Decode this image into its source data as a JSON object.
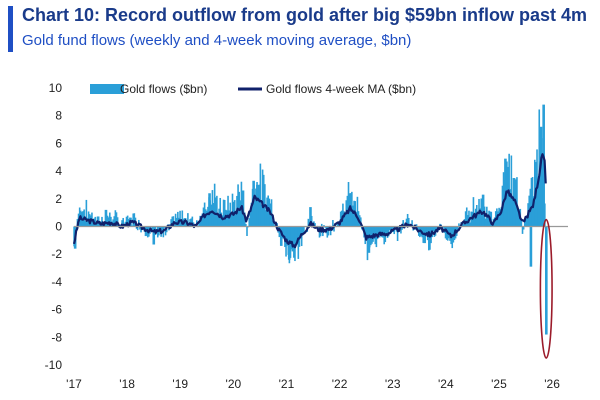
{
  "chart_data": {
    "type": "bar+line",
    "title": "Chart 10: Record outflow from gold after big $59bn inflow past 4m",
    "subtitle": "Gold fund flows (weekly and 4-week moving average, $bn)",
    "xlabel": "",
    "ylabel": "",
    "ylim": [
      -10,
      10
    ],
    "yticks": [
      10,
      8,
      6,
      4,
      2,
      0,
      -2,
      -4,
      -6,
      -8,
      -10
    ],
    "xlim": [
      2017,
      2026.3
    ],
    "xticks": [
      {
        "value": 2017,
        "label": "'17"
      },
      {
        "value": 2018,
        "label": "'18"
      },
      {
        "value": 2019,
        "label": "'19"
      },
      {
        "value": 2020,
        "label": "'20"
      },
      {
        "value": 2021,
        "label": "'21"
      },
      {
        "value": 2022,
        "label": "'22"
      },
      {
        "value": 2023,
        "label": "'23"
      },
      {
        "value": 2024,
        "label": "'24"
      },
      {
        "value": 2025,
        "label": "'25"
      },
      {
        "value": 2026,
        "label": "'26"
      }
    ],
    "series": [
      {
        "name": "Gold flows ($bn)",
        "kind": "bar",
        "color": "#2a9fd8",
        "anchors": [
          [
            2017.0,
            -1.5
          ],
          [
            2017.1,
            1.4
          ],
          [
            2017.3,
            0.9
          ],
          [
            2017.5,
            0.4
          ],
          [
            2017.7,
            0.8
          ],
          [
            2017.9,
            0.2
          ],
          [
            2018.1,
            0.7
          ],
          [
            2018.3,
            -0.2
          ],
          [
            2018.5,
            -0.6
          ],
          [
            2018.7,
            -0.7
          ],
          [
            2018.9,
            0.6
          ],
          [
            2019.1,
            0.8
          ],
          [
            2019.3,
            0.2
          ],
          [
            2019.45,
            1.5
          ],
          [
            2019.6,
            2.2
          ],
          [
            2019.8,
            1.3
          ],
          [
            2020.0,
            1.7
          ],
          [
            2020.15,
            2.5
          ],
          [
            2020.25,
            -0.4
          ],
          [
            2020.4,
            3.4
          ],
          [
            2020.55,
            2.8
          ],
          [
            2020.7,
            1.8
          ],
          [
            2020.85,
            -0.6
          ],
          [
            2021.0,
            -1.8
          ],
          [
            2021.15,
            -2.2
          ],
          [
            2021.3,
            -0.9
          ],
          [
            2021.45,
            0.6
          ],
          [
            2021.6,
            -0.5
          ],
          [
            2021.8,
            -0.3
          ],
          [
            2022.0,
            0.6
          ],
          [
            2022.2,
            2.3
          ],
          [
            2022.35,
            1.2
          ],
          [
            2022.5,
            -1.5
          ],
          [
            2022.7,
            -1.0
          ],
          [
            2022.9,
            -0.8
          ],
          [
            2023.1,
            -0.4
          ],
          [
            2023.3,
            0.6
          ],
          [
            2023.5,
            -0.5
          ],
          [
            2023.7,
            -1.0
          ],
          [
            2023.9,
            -0.2
          ],
          [
            2024.1,
            -1.2
          ],
          [
            2024.3,
            0.4
          ],
          [
            2024.5,
            1.3
          ],
          [
            2024.7,
            1.8
          ],
          [
            2024.9,
            0.3
          ],
          [
            2025.05,
            2.2
          ],
          [
            2025.15,
            4.7
          ],
          [
            2025.3,
            3.2
          ],
          [
            2025.45,
            -0.5
          ],
          [
            2025.55,
            1.8
          ],
          [
            2025.65,
            2.8
          ],
          [
            2025.75,
            6.5
          ],
          [
            2025.82,
            8.5
          ],
          [
            2025.86,
            4.0
          ],
          [
            2025.89,
            -7.7
          ],
          [
            2025.92,
            -2.0
          ]
        ],
        "spikes": [
          [
            2017.02,
            -1.6
          ],
          [
            2017.6,
            1.2
          ],
          [
            2018.5,
            -1.3
          ],
          [
            2019.55,
            2.4
          ],
          [
            2020.18,
            2.6
          ],
          [
            2020.38,
            3.3
          ],
          [
            2020.45,
            3.0
          ],
          [
            2020.9,
            -1.4
          ],
          [
            2021.05,
            -2.4
          ],
          [
            2021.12,
            -1.8
          ],
          [
            2021.45,
            1.4
          ],
          [
            2022.18,
            2.4
          ],
          [
            2022.55,
            -1.9
          ],
          [
            2023.6,
            -1.2
          ],
          [
            2024.7,
            2.3
          ],
          [
            2025.12,
            4.9
          ],
          [
            2025.28,
            3.5
          ],
          [
            2025.6,
            -2.9
          ],
          [
            2025.7,
            3.6
          ],
          [
            2025.79,
            7.2
          ],
          [
            2025.84,
            8.8
          ],
          [
            2025.89,
            -7.8
          ]
        ]
      },
      {
        "name": "Gold flows 4-week MA ($bn)",
        "kind": "line",
        "color": "#10216b",
        "anchors": [
          [
            2017.0,
            -1.2
          ],
          [
            2017.1,
            0.6
          ],
          [
            2017.3,
            0.4
          ],
          [
            2017.5,
            0.2
          ],
          [
            2017.7,
            0.3
          ],
          [
            2017.9,
            0.0
          ],
          [
            2018.1,
            0.3
          ],
          [
            2018.3,
            -0.1
          ],
          [
            2018.5,
            -0.4
          ],
          [
            2018.7,
            -0.3
          ],
          [
            2018.9,
            0.3
          ],
          [
            2019.1,
            0.3
          ],
          [
            2019.3,
            0.0
          ],
          [
            2019.45,
            0.8
          ],
          [
            2019.6,
            1.2
          ],
          [
            2019.8,
            0.7
          ],
          [
            2020.0,
            0.9
          ],
          [
            2020.15,
            1.4
          ],
          [
            2020.25,
            0.4
          ],
          [
            2020.4,
            2.1
          ],
          [
            2020.55,
            1.6
          ],
          [
            2020.7,
            1.0
          ],
          [
            2020.85,
            -0.2
          ],
          [
            2021.0,
            -1.0
          ],
          [
            2021.15,
            -1.4
          ],
          [
            2021.3,
            -0.5
          ],
          [
            2021.45,
            0.2
          ],
          [
            2021.6,
            -0.2
          ],
          [
            2021.8,
            -0.2
          ],
          [
            2022.0,
            0.3
          ],
          [
            2022.2,
            1.3
          ],
          [
            2022.35,
            0.7
          ],
          [
            2022.5,
            -0.8
          ],
          [
            2022.7,
            -0.6
          ],
          [
            2022.9,
            -0.5
          ],
          [
            2023.1,
            -0.2
          ],
          [
            2023.3,
            0.2
          ],
          [
            2023.5,
            -0.3
          ],
          [
            2023.7,
            -0.6
          ],
          [
            2023.9,
            -0.1
          ],
          [
            2024.1,
            -0.7
          ],
          [
            2024.3,
            0.1
          ],
          [
            2024.5,
            0.7
          ],
          [
            2024.7,
            1.1
          ],
          [
            2024.9,
            0.2
          ],
          [
            2025.05,
            1.2
          ],
          [
            2025.15,
            2.6
          ],
          [
            2025.3,
            1.8
          ],
          [
            2025.45,
            0.2
          ],
          [
            2025.55,
            0.9
          ],
          [
            2025.65,
            1.6
          ],
          [
            2025.75,
            3.6
          ],
          [
            2025.82,
            5.3
          ],
          [
            2025.86,
            4.6
          ],
          [
            2025.89,
            2.2
          ]
        ]
      }
    ],
    "legend": {
      "position": "top-left"
    },
    "annotation": {
      "type": "ellipse",
      "color": "#9b1b2a",
      "center": [
        2025.89,
        -4.5
      ],
      "half_width_years": 0.11,
      "half_height": 5.0
    }
  }
}
